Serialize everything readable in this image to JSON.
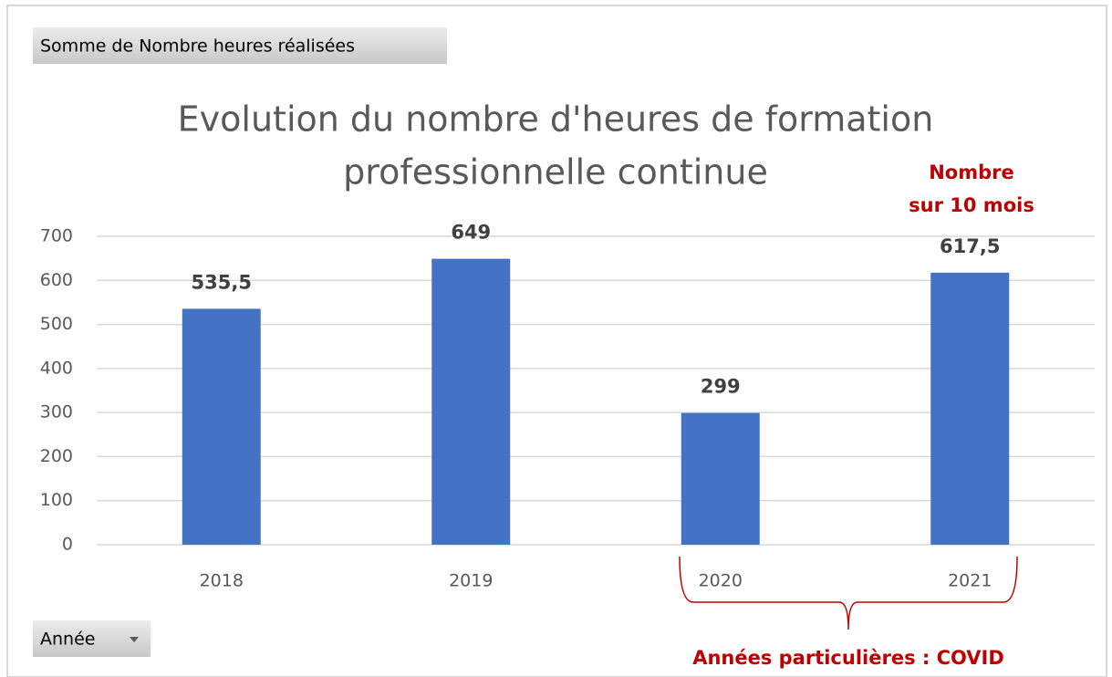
{
  "chart_data": {
    "type": "bar",
    "title": [
      "Evolution du nombre d'heures de formation",
      "professionnelle continue"
    ],
    "value_field_button": "Somme de Nombre heures réalisées",
    "axis_field_button": "Année",
    "categories": [
      "2018",
      "2019",
      "2020",
      "2021"
    ],
    "values": [
      535.5,
      649,
      299,
      617.5
    ],
    "value_labels": [
      "535,5",
      "649",
      "299",
      "617,5"
    ],
    "color": "#4472c4",
    "ylim": [
      0,
      700
    ],
    "yticks": [
      0,
      100,
      200,
      300,
      400,
      500,
      600,
      700
    ],
    "grid": true,
    "annotation_2021": [
      "Nombre",
      "sur 10 mois"
    ],
    "annotation_covid": "Années particulières : COVID"
  }
}
